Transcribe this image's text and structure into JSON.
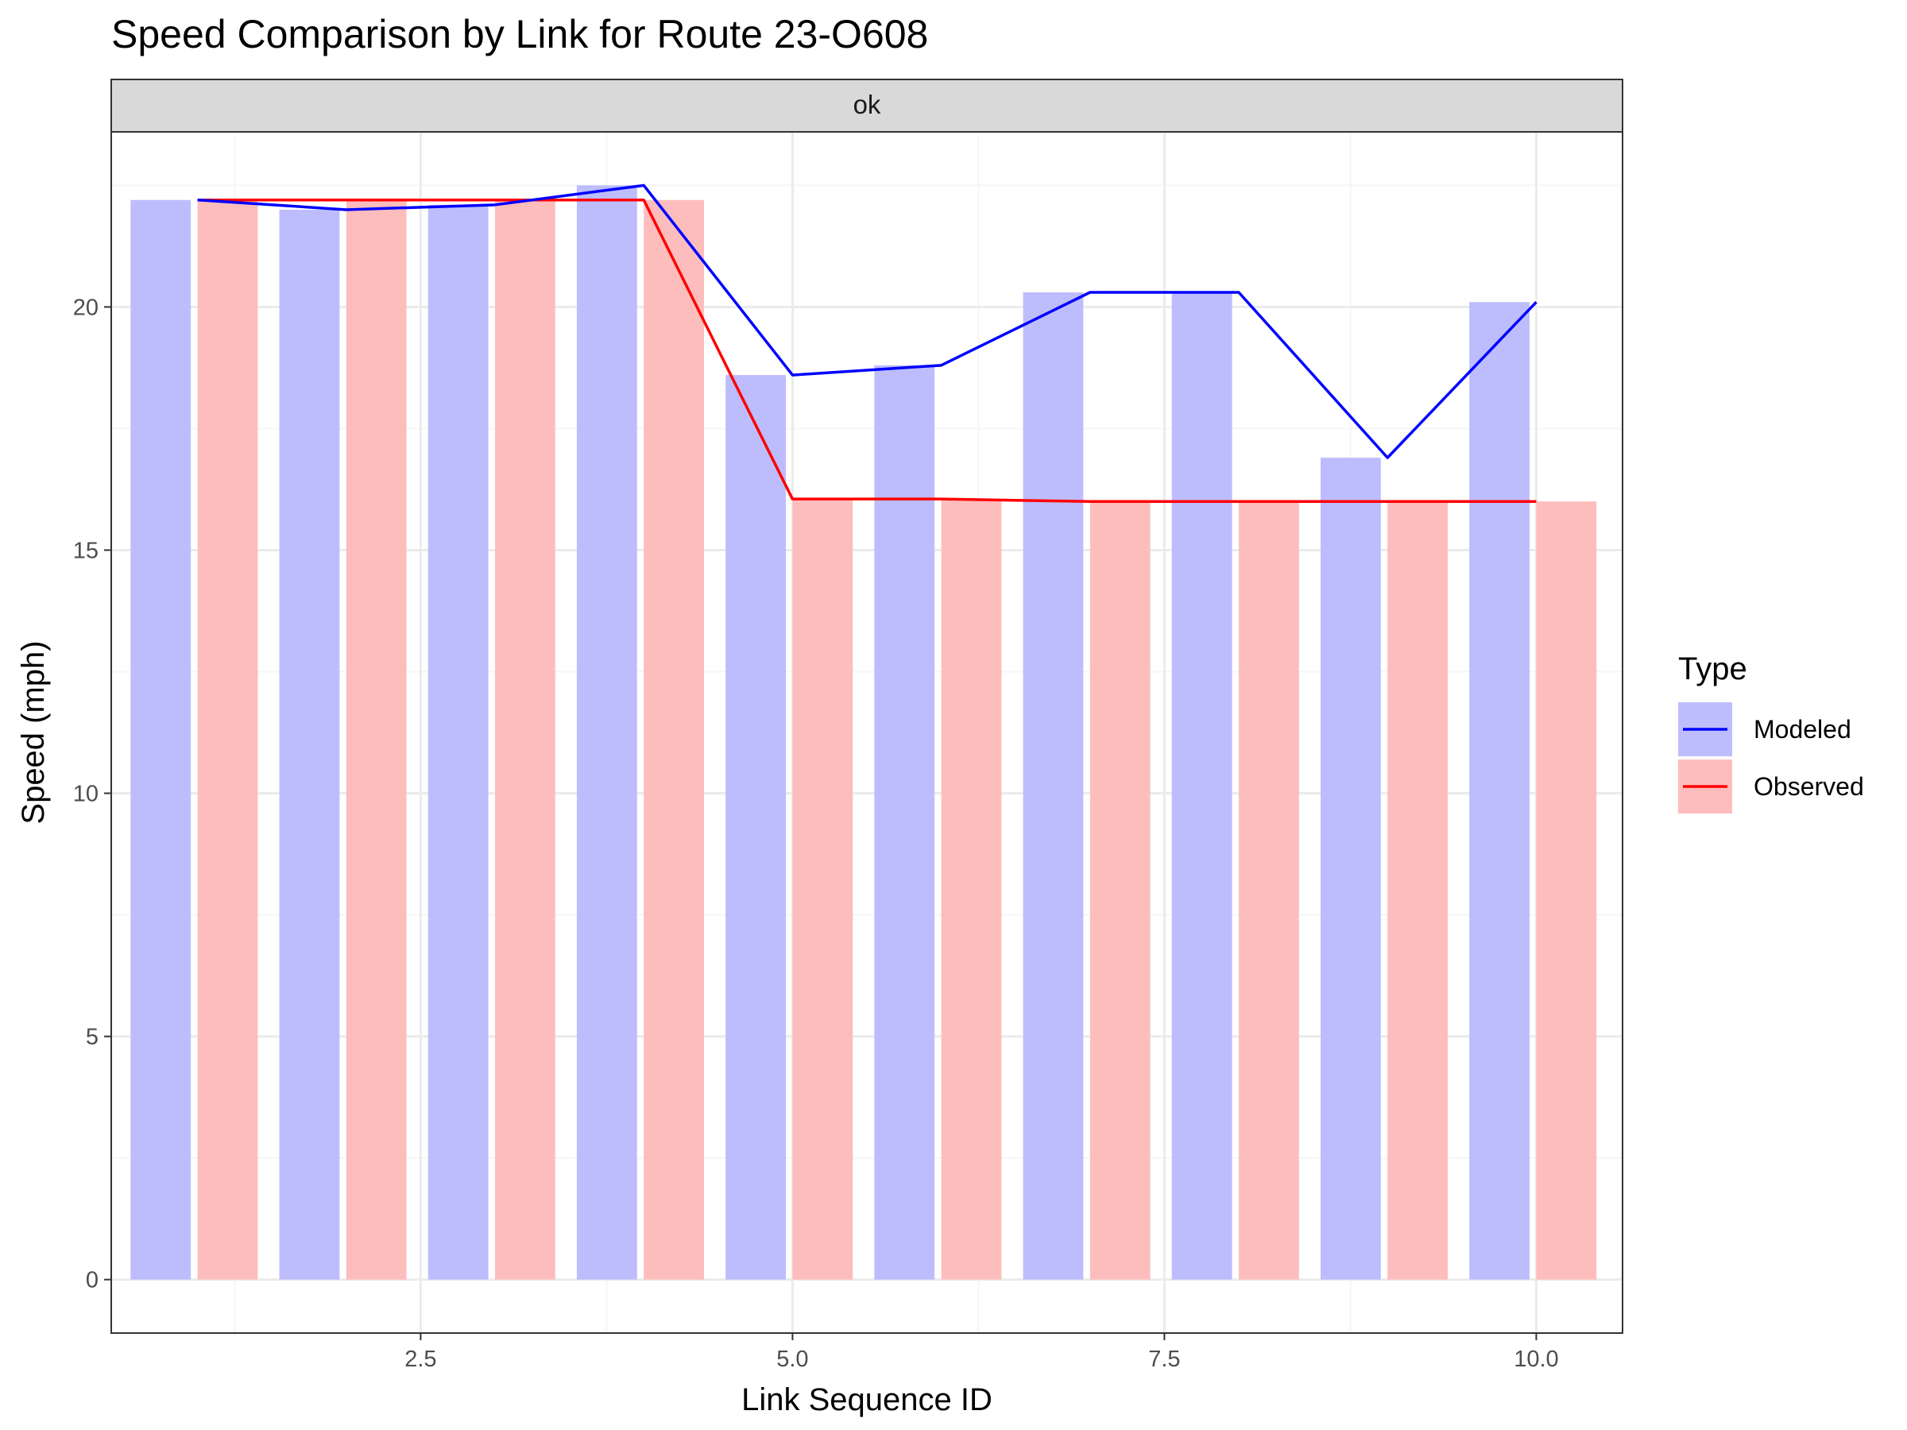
{
  "chart_data": {
    "type": "bar",
    "title": "Speed Comparison by Link for Route 23-O608",
    "facet_label": "ok",
    "xlabel": "Link Sequence ID",
    "ylabel": "Speed (mph)",
    "x": [
      1,
      2,
      3,
      4,
      5,
      6,
      7,
      8,
      9,
      10
    ],
    "xlim": [
      0.42,
      10.58
    ],
    "ylim": [
      -1.1,
      23.6
    ],
    "x_ticks": [
      2.5,
      5.0,
      7.5,
      10.0
    ],
    "x_tick_labels": [
      "2.5",
      "5.0",
      "7.5",
      "10.0"
    ],
    "y_ticks": [
      0,
      5,
      10,
      15,
      20
    ],
    "y_tick_labels": [
      "0",
      "5",
      "10",
      "15",
      "20"
    ],
    "grid": true,
    "legend": {
      "title": "Type",
      "placement": "right",
      "entries": [
        "Modeled",
        "Observed"
      ]
    },
    "series": [
      {
        "name": "Modeled",
        "bar_color": "#bdbdfd",
        "line_color": "#0000ff",
        "values": [
          22.2,
          22.0,
          22.1,
          22.5,
          18.6,
          18.8,
          20.3,
          20.3,
          16.9,
          20.1
        ]
      },
      {
        "name": "Observed",
        "bar_color": "#febdbd",
        "line_color": "#ff0000",
        "values": [
          22.2,
          22.2,
          22.2,
          22.2,
          16.05,
          16.05,
          16.0,
          16.0,
          16.0,
          16.0
        ]
      }
    ],
    "colors": {
      "panel_border": "#333333",
      "strip_fill": "#d9d9d9",
      "grid_major": "#ebebeb",
      "grid_minor": "#f5f5f5"
    }
  }
}
